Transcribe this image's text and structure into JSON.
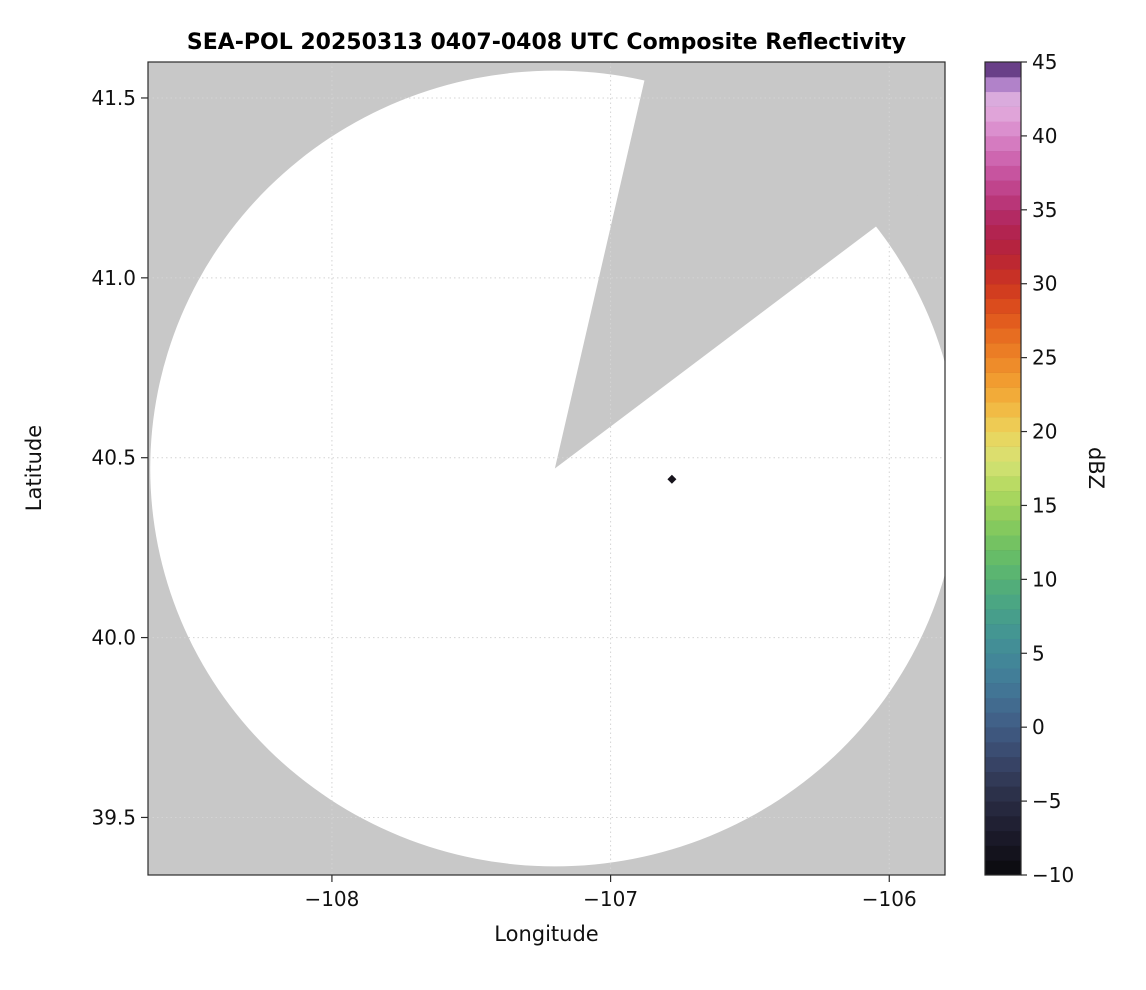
{
  "chart_data": {
    "type": "heatmap",
    "title": "SEA-POL 20250313 0407-0408 UTC Composite Reflectivity",
    "xlabel": "Longitude",
    "ylabel": "Latitude",
    "xlim": [
      -108.66,
      -105.8
    ],
    "ylim": [
      39.34,
      41.6
    ],
    "xticks": [
      -108,
      -107,
      -106
    ],
    "xtick_labels": [
      "−108",
      "−107",
      "−106"
    ],
    "yticks": [
      39.5,
      40.0,
      40.5,
      41.0,
      41.5
    ],
    "ytick_labels": [
      "39.5",
      "40.0",
      "40.5",
      "41.0",
      "41.5"
    ],
    "grid": "faint dotted",
    "masked_color": "#c8c8c8",
    "coverage_color": "#ffffff",
    "coverage": {
      "description": "white circular radar coverage area centered on the SEA-POL radar; gray = no data / masked, including a blocked azimuth sector",
      "center_lon": -107.2,
      "center_lat": 40.47,
      "radius_deg_lat": 1.106,
      "radius_deg_lon": 1.452,
      "missing_sector_azimuth_deg": [
        13,
        53
      ]
    },
    "echoes": [
      {
        "lon": -106.78,
        "lat": 40.44,
        "color": "#17141c",
        "note": "single tiny dark reflectivity echo"
      }
    ],
    "colorbar": {
      "label": "dBZ",
      "min": -10,
      "max": 45,
      "step_dbz": 1,
      "ticks": [
        -10,
        -5,
        0,
        5,
        10,
        15,
        20,
        25,
        30,
        35,
        40,
        45
      ],
      "tick_labels": [
        "−10",
        "−5",
        "0",
        "5",
        "10",
        "15",
        "20",
        "25",
        "30",
        "35",
        "40",
        "45"
      ],
      "stops": [
        [
          -10,
          "#0a0a0c"
        ],
        [
          -8,
          "#171622"
        ],
        [
          -6,
          "#232338"
        ],
        [
          -4,
          "#2f3550"
        ],
        [
          -2,
          "#39486c"
        ],
        [
          0,
          "#405c84"
        ],
        [
          2,
          "#427093"
        ],
        [
          4,
          "#428299"
        ],
        [
          6,
          "#439295"
        ],
        [
          8,
          "#48a287"
        ],
        [
          10,
          "#55b175"
        ],
        [
          12,
          "#6cbf64"
        ],
        [
          14,
          "#8ccc5c"
        ],
        [
          16,
          "#b0d95e"
        ],
        [
          18,
          "#d6e274"
        ],
        [
          20,
          "#ecd35b"
        ],
        [
          22,
          "#f2b33d"
        ],
        [
          24,
          "#f0942c"
        ],
        [
          26,
          "#e97522"
        ],
        [
          28,
          "#df531c"
        ],
        [
          30,
          "#cd3520"
        ],
        [
          32,
          "#b72336"
        ],
        [
          34,
          "#b02458"
        ],
        [
          36,
          "#bc3c82"
        ],
        [
          38,
          "#ca5ca8"
        ],
        [
          40,
          "#d985c8"
        ],
        [
          42,
          "#e2aede"
        ],
        [
          43,
          "#d2a8dc"
        ],
        [
          44,
          "#8f5cb5"
        ],
        [
          45,
          "#42215a"
        ]
      ]
    }
  }
}
